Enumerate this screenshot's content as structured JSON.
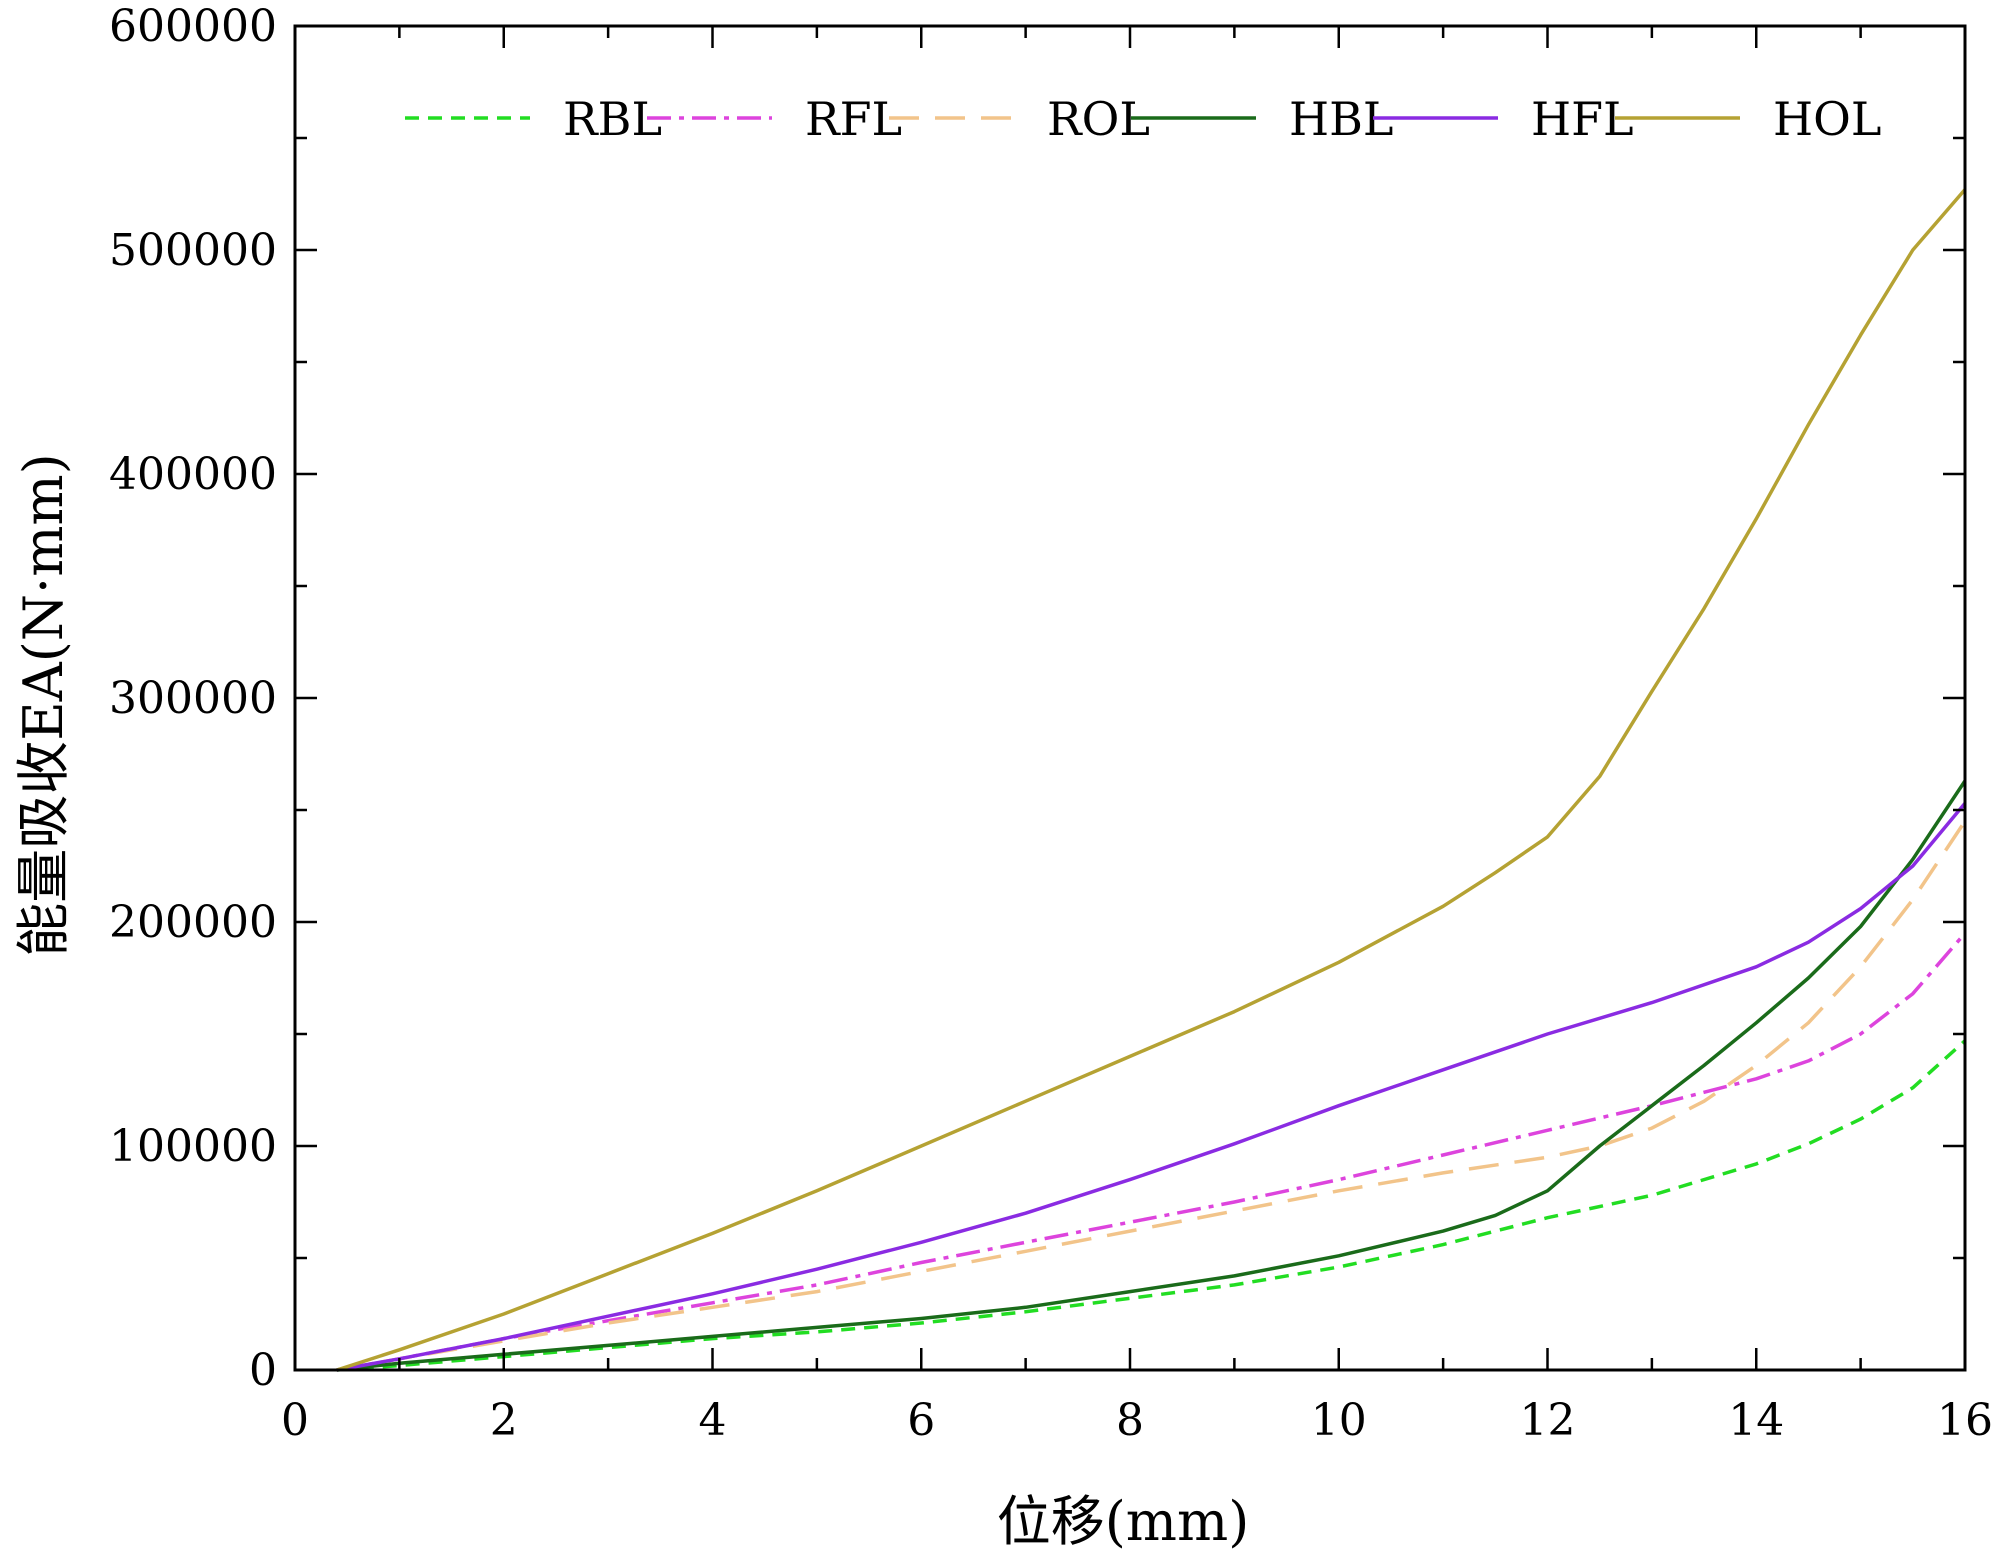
{
  "chart_data": {
    "type": "line",
    "title": "",
    "xlabel": "位移(mm)",
    "ylabel": "能量吸收EA(N·mm)",
    "xlim": [
      0,
      16
    ],
    "ylim": [
      0,
      600000
    ],
    "xticks": [
      0,
      2,
      4,
      6,
      8,
      10,
      12,
      14,
      16
    ],
    "yticks": [
      0,
      100000,
      200000,
      300000,
      400000,
      500000,
      600000
    ],
    "xtick_labels": [
      "0",
      "2",
      "4",
      "6",
      "8",
      "10",
      "12",
      "14",
      "16"
    ],
    "ytick_labels": [
      "0",
      "100000",
      "200000",
      "300000",
      "400000",
      "500000",
      "600000"
    ],
    "grid": false,
    "legend_position": "top",
    "series": [
      {
        "name": "RBL",
        "color": "#22dd22",
        "dash": "short-dash",
        "x": [
          0.4,
          1,
          2,
          3,
          4,
          5,
          6,
          7,
          8,
          9,
          10,
          11,
          12,
          13,
          14,
          14.5,
          15,
          15.5,
          16
        ],
        "y": [
          0,
          2000,
          6000,
          10000,
          14000,
          17000,
          21000,
          26000,
          32000,
          38000,
          46000,
          56000,
          68000,
          78000,
          92000,
          101000,
          112000,
          126000,
          147000
        ]
      },
      {
        "name": "RFL",
        "color": "#dd44dd",
        "dash": "dash-dot",
        "x": [
          0.4,
          1,
          2,
          3,
          4,
          5,
          6,
          7,
          8,
          9,
          10,
          11,
          12,
          13,
          14,
          14.5,
          15,
          15.5,
          16
        ],
        "y": [
          0,
          5000,
          14000,
          22000,
          30000,
          38000,
          48000,
          57000,
          66000,
          75000,
          85000,
          96000,
          107000,
          118000,
          130000,
          138000,
          150000,
          168000,
          195000
        ]
      },
      {
        "name": "ROL",
        "color": "#f2c48a",
        "dash": "long-dash",
        "x": [
          0.4,
          1,
          2,
          3,
          4,
          5,
          6,
          7,
          8,
          9,
          10,
          11,
          12,
          12.5,
          13,
          13.5,
          14,
          14.5,
          15,
          15.5,
          16
        ],
        "y": [
          0,
          5000,
          13000,
          21000,
          28000,
          35000,
          44000,
          53000,
          62000,
          71000,
          80000,
          88000,
          95000,
          100000,
          108000,
          120000,
          136000,
          155000,
          180000,
          210000,
          245000
        ]
      },
      {
        "name": "HBL",
        "color": "#1a6b1a",
        "dash": "solid",
        "x": [
          0.4,
          1,
          2,
          3,
          4,
          5,
          6,
          7,
          8,
          9,
          10,
          11,
          11.5,
          12,
          12.5,
          13,
          13.5,
          14,
          14.5,
          15,
          15.5,
          16
        ],
        "y": [
          0,
          3000,
          7000,
          11000,
          15000,
          19000,
          23000,
          28000,
          35000,
          42000,
          51000,
          62000,
          69000,
          80000,
          100000,
          118000,
          136000,
          155000,
          175000,
          198000,
          228000,
          263000
        ]
      },
      {
        "name": "HFL",
        "color": "#8a2be2",
        "dash": "solid",
        "x": [
          0.4,
          1,
          2,
          3,
          4,
          5,
          6,
          7,
          8,
          9,
          10,
          11,
          12,
          13,
          14,
          14.5,
          15,
          15.5,
          16
        ],
        "y": [
          0,
          5000,
          14000,
          24000,
          34000,
          45000,
          57000,
          70000,
          85000,
          101000,
          118000,
          134000,
          150000,
          164000,
          180000,
          191000,
          206000,
          225000,
          253000
        ]
      },
      {
        "name": "HOL",
        "color": "#b5a233",
        "dash": "solid",
        "x": [
          0.4,
          1,
          2,
          3,
          4,
          5,
          6,
          7,
          8,
          9,
          10,
          11,
          11.5,
          12,
          12.5,
          13,
          13.5,
          14,
          14.5,
          15,
          15.5,
          16
        ],
        "y": [
          0,
          9000,
          25000,
          43000,
          61000,
          80000,
          100000,
          120000,
          140000,
          160000,
          182000,
          207000,
          222000,
          238000,
          265000,
          303000,
          340000,
          380000,
          422000,
          462000,
          500000,
          527000
        ]
      }
    ]
  }
}
